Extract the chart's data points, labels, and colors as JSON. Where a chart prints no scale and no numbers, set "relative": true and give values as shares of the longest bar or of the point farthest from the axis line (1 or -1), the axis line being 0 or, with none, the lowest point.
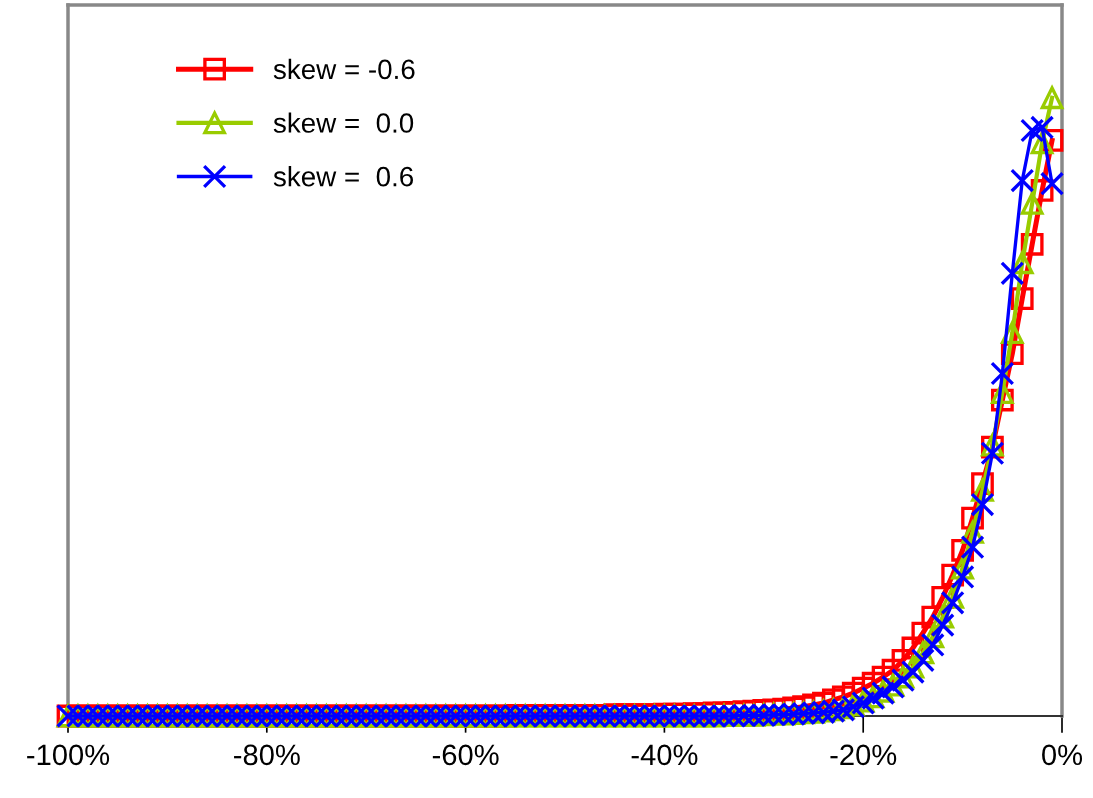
{
  "chart_data": {
    "type": "line",
    "relative": true,
    "x": [
      -100,
      -99,
      -98,
      -97,
      -96,
      -95,
      -94,
      -93,
      -92,
      -91,
      -90,
      -89,
      -88,
      -87,
      -86,
      -85,
      -84,
      -83,
      -82,
      -81,
      -80,
      -79,
      -78,
      -77,
      -76,
      -75,
      -74,
      -73,
      -72,
      -71,
      -70,
      -69,
      -68,
      -67,
      -66,
      -65,
      -64,
      -63,
      -62,
      -61,
      -60,
      -59,
      -58,
      -57,
      -56,
      -55,
      -54,
      -53,
      -52,
      -51,
      -50,
      -49,
      -48,
      -47,
      -46,
      -45,
      -44,
      -43,
      -42,
      -41,
      -40,
      -39,
      -38,
      -37,
      -36,
      -35,
      -34,
      -33,
      -32,
      -31,
      -30,
      -29,
      -28,
      -27,
      -26,
      -25,
      -24,
      -23,
      -22,
      -21,
      -20,
      -19,
      -18,
      -17,
      -16,
      -15,
      -14,
      -13,
      -12,
      -11,
      -10,
      -9,
      -8,
      -7,
      -6,
      -5,
      -4,
      -3,
      -2,
      -1
    ],
    "xlim": [
      -100,
      0
    ],
    "xticks": [
      {
        "value": -100,
        "label": "-100%"
      },
      {
        "value": -80,
        "label": "-80%"
      },
      {
        "value": -60,
        "label": "-60%"
      },
      {
        "value": -40,
        "label": "-40%"
      },
      {
        "value": -20,
        "label": "-20%"
      },
      {
        "value": 0,
        "label": "0%"
      }
    ],
    "tick_labels": "x",
    "grid": false,
    "legend": "top left",
    "line_style": "solid",
    "series": [
      {
        "name": "skew = -0.6",
        "color": "#ff0000",
        "marker": "square",
        "values": [
          0,
          0,
          0,
          0,
          0,
          0,
          0,
          0,
          0,
          0,
          0,
          0,
          0,
          0,
          0,
          0,
          0,
          0,
          0,
          0,
          0,
          0,
          0,
          0,
          0,
          0,
          0,
          0,
          0,
          0,
          0,
          0,
          0,
          0,
          0,
          0,
          0,
          0,
          0,
          0,
          0,
          0,
          0,
          0,
          0,
          0.001,
          0.001,
          0.001,
          0.001,
          0.001,
          0.001,
          0.001,
          0.001,
          0.001,
          0.001,
          0.002,
          0.002,
          0.002,
          0.002,
          0.002,
          0.003,
          0.003,
          0.003,
          0.004,
          0.004,
          0.005,
          0.005,
          0.006,
          0.007,
          0.008,
          0.009,
          0.01,
          0.011,
          0.013,
          0.015,
          0.018,
          0.021,
          0.026,
          0.031,
          0.037,
          0.045,
          0.053,
          0.063,
          0.074,
          0.09,
          0.11,
          0.134,
          0.16,
          0.192,
          0.228,
          0.268,
          0.32,
          0.376,
          0.435,
          0.511,
          0.586,
          0.675,
          0.763,
          0.85,
          0.931
        ]
      },
      {
        "name": "skew =  0.0",
        "color": "#99cc00",
        "marker": "triangle",
        "values": [
          0,
          0,
          0,
          0,
          0,
          0,
          0,
          0,
          0,
          0,
          0,
          0,
          0,
          0,
          0,
          0,
          0,
          0,
          0,
          0,
          0,
          0,
          0,
          0,
          0,
          0,
          0,
          0,
          0,
          0,
          0,
          0,
          0,
          0,
          0,
          0,
          0,
          0,
          0,
          0,
          0,
          0,
          0,
          0,
          0,
          0,
          0,
          0,
          0,
          0,
          0,
          0,
          0,
          0,
          0,
          0,
          0,
          0,
          0,
          0,
          0,
          0,
          0,
          0,
          0,
          0,
          0.001,
          0.001,
          0.001,
          0.001,
          0.002,
          0.003,
          0.003,
          0.004,
          0.005,
          0.006,
          0.008,
          0.01,
          0.013,
          0.018,
          0.024,
          0.031,
          0.04,
          0.05,
          0.063,
          0.079,
          0.102,
          0.128,
          0.16,
          0.192,
          0.239,
          0.297,
          0.365,
          0.438,
          0.523,
          0.62,
          0.733,
          0.829,
          0.927,
          1.0
        ]
      },
      {
        "name": "skew =  0.6",
        "color": "#0000ff",
        "marker": "cross",
        "values": [
          0,
          0,
          0,
          0,
          0,
          0,
          0,
          0,
          0,
          0,
          0,
          0,
          0,
          0,
          0,
          0,
          0,
          0,
          0,
          0,
          0,
          0,
          0,
          0,
          0,
          0,
          0,
          0,
          0,
          0,
          0,
          0,
          0,
          0,
          0,
          0,
          0,
          0,
          0,
          0,
          0,
          0,
          0,
          0,
          0,
          0,
          0,
          0,
          0,
          0,
          0,
          0,
          0,
          0,
          0,
          0,
          0,
          0,
          0,
          0,
          0,
          0,
          0,
          0,
          0,
          0,
          0,
          0,
          0.001,
          0.001,
          0.001,
          0.002,
          0.002,
          0.003,
          0.004,
          0.005,
          0.006,
          0.008,
          0.01,
          0.015,
          0.021,
          0.029,
          0.037,
          0.047,
          0.058,
          0.071,
          0.09,
          0.115,
          0.147,
          0.183,
          0.225,
          0.273,
          0.342,
          0.425,
          0.554,
          0.716,
          0.866,
          0.947,
          0.952,
          0.861
        ]
      }
    ]
  }
}
